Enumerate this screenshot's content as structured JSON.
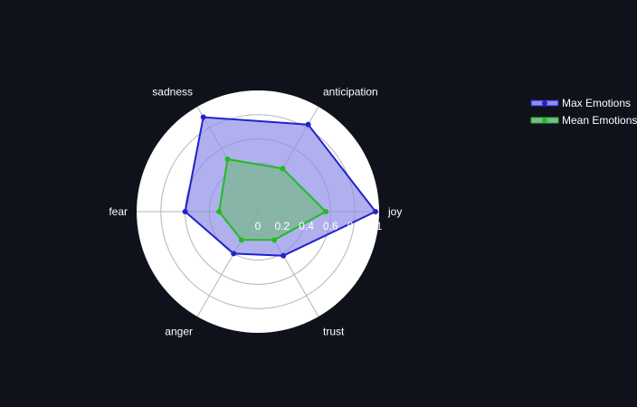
{
  "chart_data": {
    "type": "radar",
    "axes": [
      "joy",
      "anticipation",
      "sadness",
      "fear",
      "anger",
      "trust"
    ],
    "radial_range": [
      0,
      1
    ],
    "radial_ticks": [
      "0",
      "0.2",
      "0.4",
      "0.6",
      "0.8",
      "1"
    ],
    "radial_tick_values": [
      0,
      0.2,
      0.4,
      0.6,
      0.8,
      1
    ],
    "series": [
      {
        "name": "Max Emotions",
        "values": [
          0.97,
          0.83,
          0.9,
          0.6,
          0.4,
          0.42
        ],
        "color": "#2222cc",
        "fill": "#8f8fe8"
      },
      {
        "name": "Mean Emotions",
        "values": [
          0.56,
          0.41,
          0.5,
          0.32,
          0.27,
          0.27
        ],
        "color": "#22bb22",
        "fill": "#7ab892"
      }
    ],
    "legend_position": "top-right"
  },
  "colors": {
    "background": "#0f121a",
    "polar_bg": "#ffffff",
    "grid": "#b4b4b4",
    "text": "#ffffff"
  }
}
